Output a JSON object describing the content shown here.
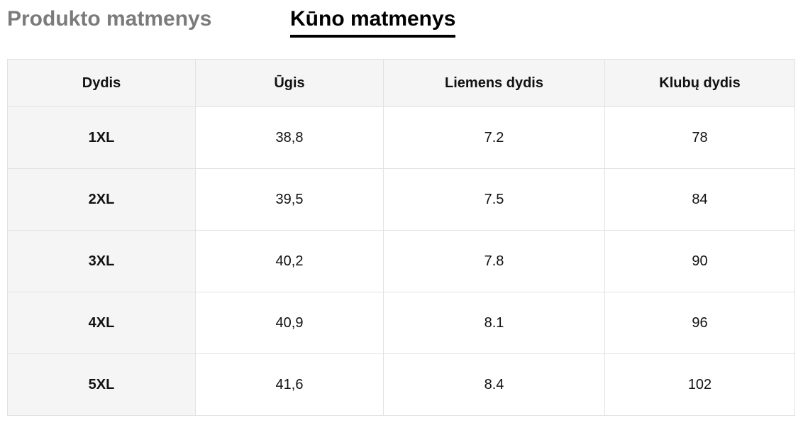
{
  "tabs": {
    "items": [
      "Produkto matmenys",
      "Kūno matmenys"
    ],
    "active": 1
  },
  "table": {
    "header": [
      "Dydis",
      "Ūgis",
      "Liemens dydis",
      "Klubų dydis"
    ],
    "rows": [
      [
        "1XL",
        "38,8",
        "7.2",
        "78"
      ],
      [
        "2XL",
        "39,5",
        "7.5",
        "84"
      ],
      [
        "3XL",
        "40,2",
        "7.8",
        "90"
      ],
      [
        "4XL",
        "40,9",
        "8.1",
        "96"
      ],
      [
        "5XL",
        "41,6",
        "8.4",
        "102"
      ]
    ]
  }
}
